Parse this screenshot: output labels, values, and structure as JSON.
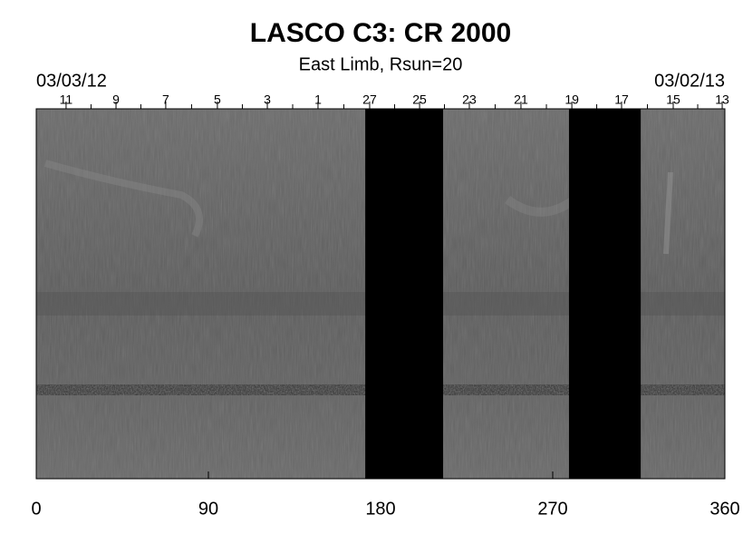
{
  "chart_data": {
    "type": "synoptic-map",
    "title": "LASCO C3: CR 2000",
    "subtitle": "East Limb, Rsun=20",
    "start_date": "03/03/12",
    "end_date": "03/02/13",
    "xlim": [
      0,
      360
    ],
    "xticks": [
      0,
      90,
      180,
      270,
      360
    ],
    "top_ticks": [
      {
        "value": 15.6,
        "label": "11"
      },
      {
        "value": 41.7,
        "label": "9"
      },
      {
        "value": 67.7,
        "label": "7"
      },
      {
        "value": 94.7,
        "label": "5"
      },
      {
        "value": 120.8,
        "label": "3"
      },
      {
        "value": 147.3,
        "label": "1"
      },
      {
        "value": 174.3,
        "label": "27"
      },
      {
        "value": 200.4,
        "label": "25"
      },
      {
        "value": 226.4,
        "label": "23"
      },
      {
        "value": 253.4,
        "label": "21"
      },
      {
        "value": 280,
        "label": "19"
      },
      {
        "value": 306,
        "label": "17"
      },
      {
        "value": 333,
        "label": "15"
      },
      {
        "value": 358.6,
        "label": "13"
      }
    ],
    "gaps": [
      [
        172,
        212.7
      ],
      [
        278.5,
        316
      ]
    ],
    "gap_color": "#000000"
  }
}
